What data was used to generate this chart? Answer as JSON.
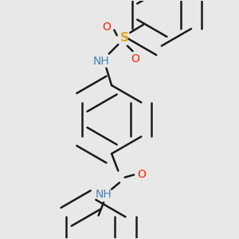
{
  "bg_color": "#e8e8e8",
  "line_color": "#1a1a1a",
  "bond_width": 1.8,
  "font_size": 10,
  "colors": {
    "N": "#4682B4",
    "O": "#FF2200",
    "S": "#DAA520",
    "C": "#1a1a1a",
    "H": "#4682B4"
  }
}
